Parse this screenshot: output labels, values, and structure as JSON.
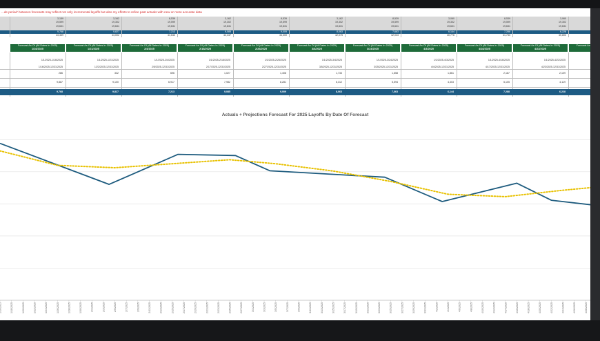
{
  "sheet": {
    "note": "...de period' between forecasts may reflect not only incremental layoffs but also my efforts to refine past actuals with new or more accurate data",
    "top_table": {
      "columns": [
        {
          "r1": "3,159",
          "r2": "19,599",
          "r3": "19,631",
          "blue": "9,768",
          "total": "43,459"
        },
        {
          "r1": "3,162",
          "r2": "19,302",
          "r3": "19,631",
          "blue": "9,827",
          "total": "44,002"
        },
        {
          "r1": "8,539",
          "r2": "19,599",
          "r3": "19,631",
          "blue": "7,213",
          "total": "41,643"
        },
        {
          "r1": "3,162",
          "r2": "19,302",
          "r3": "19,631",
          "blue": "9,085",
          "total": "42,447"
        },
        {
          "r1": "8,539",
          "r2": "19,599",
          "r3": "19,631",
          "blue": "9,009",
          "total": "44,300"
        },
        {
          "r1": "3,162",
          "r2": "19,302",
          "r3": "19,631",
          "blue": "8,063",
          "total": "42,075"
        },
        {
          "r1": "8,539",
          "r2": "19,599",
          "r3": "19,631",
          "blue": "7,663",
          "total": "42,033"
        },
        {
          "r1": "3,060",
          "r2": "19,302",
          "r3": "19,631",
          "blue": "6,144",
          "total": "40,776"
        },
        {
          "r1": "8,539",
          "r2": "19,599",
          "r3": "19,631",
          "blue": "7,288",
          "total": "41,733"
        },
        {
          "r1": "3,060",
          "r2": "19,302",
          "r3": "19,631",
          "blue": "6,228",
          "total": "40,803"
        }
      ]
    },
    "forecast_headers": [
      {
        "label": "Forecast As Of (All Dates In 2025)",
        "date": "1/16/2025"
      },
      {
        "label": "Forecast As Of (All Dates In 2025)",
        "date": "1/21/2025"
      },
      {
        "label": "Forecast As Of (All Dates In 2025)",
        "date": "2/4/2025"
      },
      {
        "label": "Forecast As Of (All Dates In 2025)",
        "date": "2/16/2025"
      },
      {
        "label": "Forecast As Of (All Dates In 2025)",
        "date": "2/26/2025"
      },
      {
        "label": "Forecast As Of (All Dates In 2025)",
        "date": "3/4/2025"
      },
      {
        "label": "Forecast As Of (All Dates In 2025)",
        "date": "3/24/2025"
      },
      {
        "label": "Forecast As Of (All Dates In 2025)",
        "date": "4/3/2025"
      },
      {
        "label": "Forecast As Of (All Dates In 2025)",
        "date": "4/16/2025"
      },
      {
        "label": "Forecast As Of (All Dates In 2025)",
        "date": "4/22/2025"
      },
      {
        "label": "Forecast As Of (All Dates In 2025)",
        "date": "4/2"
      }
    ],
    "forecast_rows": [
      {
        "a": "1/1/2025-1/16/2025",
        "b": "1/16/2025-12/31/2025",
        "c": "286",
        "d": "9,887",
        "e": "9,768"
      },
      {
        "a": "1/1/2025-1/21/2025",
        "b": "1/22/2025-12/31/2025",
        "c": "332",
        "d": "9,100",
        "e": "9,827"
      },
      {
        "a": "1/1/2025-2/4/2025",
        "b": "2/5/2025-12/31/2025",
        "c": "696",
        "d": "6,917",
        "e": "7,213"
      },
      {
        "a": "1/1/2025-2/16/2025",
        "b": "2/17/2025-12/31/2025",
        "c": "1,027",
        "d": "7,982",
        "e": "9,085"
      },
      {
        "a": "1/1/2025-2/26/2025",
        "b": "2/27/2025-12/31/2025",
        "c": "1,408",
        "d": "8,281",
        "e": "9,009"
      },
      {
        "a": "1/1/2025-3/4/2025",
        "b": "3/5/2025-12/31/2025",
        "c": "1,733",
        "d": "6,312",
        "e": "8,063"
      },
      {
        "a": "1/1/2025-3/24/2025",
        "b": "3/25/2025-12/31/2025",
        "c": "1,658",
        "d": "5,594",
        "e": "7,663"
      },
      {
        "a": "1/1/2025-4/3/2025",
        "b": "4/4/2025-12/31/2025",
        "c": "1,861",
        "d": "4,303",
        "e": "6,144"
      },
      {
        "a": "1/1/2025-4/16/2025",
        "b": "4/17/2025-12/31/2025",
        "c": "2,187",
        "d": "5,105",
        "e": "7,288"
      },
      {
        "a": "1/1/2025-4/22/2025",
        "b": "4/23/2025-12/31/2025",
        "c": "2,109",
        "d": "4,119",
        "e": "6,228"
      },
      {
        "a": "1",
        "b": "4",
        "c": "",
        "d": "",
        "e": ""
      }
    ]
  },
  "chart_data": {
    "type": "line",
    "title": "Actuals + Projections Forecast For 2025 Layoffs By Date Of Forecast",
    "xlabel": "",
    "ylabel": "",
    "grid": true,
    "ylim": [
      0,
      11000
    ],
    "x_ticks": [
      "1/16/2025",
      "1/18/2025",
      "1/20/2025",
      "1/22/2025",
      "1/24/2025",
      "1/26/2025",
      "1/28/2025",
      "1/30/2025",
      "2/1/2025",
      "2/3/2025",
      "2/5/2025",
      "2/7/2025",
      "2/9/2025",
      "2/11/2025",
      "2/13/2025",
      "2/15/2025",
      "2/17/2025",
      "2/19/2025",
      "2/21/2025",
      "2/23/2025",
      "2/25/2025",
      "2/27/2025",
      "3/1/2025",
      "3/3/2025",
      "3/5/2025",
      "3/7/2025",
      "3/9/2025",
      "3/11/2025",
      "3/13/2025",
      "3/15/2025",
      "3/17/2025",
      "3/19/2025",
      "3/21/2025",
      "3/23/2025",
      "3/25/2025",
      "3/27/2025",
      "3/29/2025",
      "3/31/2025",
      "4/2/2025",
      "4/4/2025",
      "4/6/2025",
      "4/8/2025",
      "4/10/2025",
      "4/12/2025",
      "4/14/2025",
      "4/16/2025",
      "4/18/2025",
      "4/20/2025",
      "4/22/2025",
      "4/24/2025",
      "4/26/2025",
      "4/28/2025",
      "4/30/2025"
    ],
    "series": [
      {
        "color": "#1d5b7e",
        "style": "solid",
        "points": [
          {
            "x": "1/16/2025",
            "y": 9768
          },
          {
            "x": "2/4/2025",
            "y": 7213
          },
          {
            "x": "2/16/2025",
            "y": 9085
          },
          {
            "x": "2/26/2025",
            "y": 9009
          },
          {
            "x": "3/4/2025",
            "y": 8063
          },
          {
            "x": "3/24/2025",
            "y": 7663
          },
          {
            "x": "4/3/2025",
            "y": 6144
          },
          {
            "x": "4/16/2025",
            "y": 7288
          },
          {
            "x": "4/22/2025",
            "y": 6228
          },
          {
            "x": "4/30/2025",
            "y": 5900
          }
        ]
      },
      {
        "color": "#e8c100",
        "style": "dotted",
        "points": [
          {
            "x": "1/16/2025",
            "y": 9300
          },
          {
            "x": "1/26/2025",
            "y": 8400
          },
          {
            "x": "2/5/2025",
            "y": 8250
          },
          {
            "x": "2/15/2025",
            "y": 8500
          },
          {
            "x": "2/25/2025",
            "y": 8750
          },
          {
            "x": "3/5/2025",
            "y": 8500
          },
          {
            "x": "3/15/2025",
            "y": 8050
          },
          {
            "x": "3/25/2025",
            "y": 7400
          },
          {
            "x": "4/4/2025",
            "y": 6600
          },
          {
            "x": "4/14/2025",
            "y": 6450
          },
          {
            "x": "4/24/2025",
            "y": 6850
          },
          {
            "x": "4/30/2025",
            "y": 7050
          }
        ]
      }
    ]
  }
}
